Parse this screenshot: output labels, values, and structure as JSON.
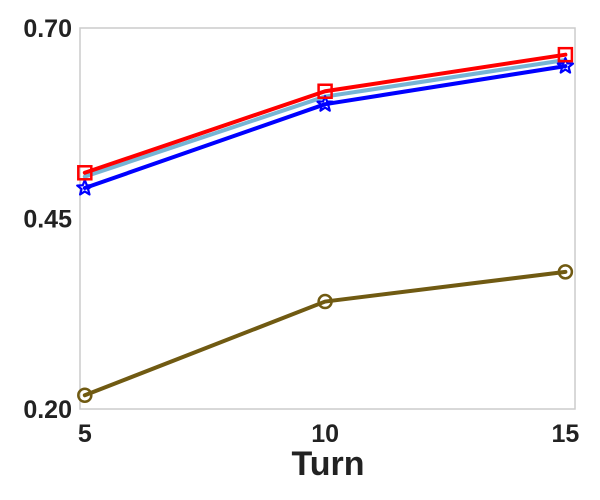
{
  "chart_data": {
    "type": "line",
    "title": "",
    "xlabel": "Turn",
    "ylabel": "",
    "x": [
      5,
      10,
      15
    ],
    "xticks": [
      5,
      10,
      15
    ],
    "xtick_labels": [
      "5",
      "10",
      "15"
    ],
    "xlim": [
      4.9,
      15.2
    ],
    "yticks": [
      0.2,
      0.45,
      0.7
    ],
    "ytick_labels": [
      "0.20",
      "0.45",
      "0.70"
    ],
    "ylim": [
      0.2,
      0.7
    ],
    "grid": false,
    "legend": "none",
    "series": [
      {
        "color": "#77b5d5",
        "marker": "none",
        "values": [
          0.505,
          0.61,
          0.658
        ]
      },
      {
        "color": "#0000ff",
        "marker": "star",
        "values": [
          0.49,
          0.6,
          0.65
        ]
      },
      {
        "color": "#ff0000",
        "marker": "square",
        "values": [
          0.51,
          0.617,
          0.665
        ]
      },
      {
        "color": "#705a12",
        "marker": "circle",
        "values": [
          0.218,
          0.341,
          0.38
        ]
      }
    ]
  }
}
